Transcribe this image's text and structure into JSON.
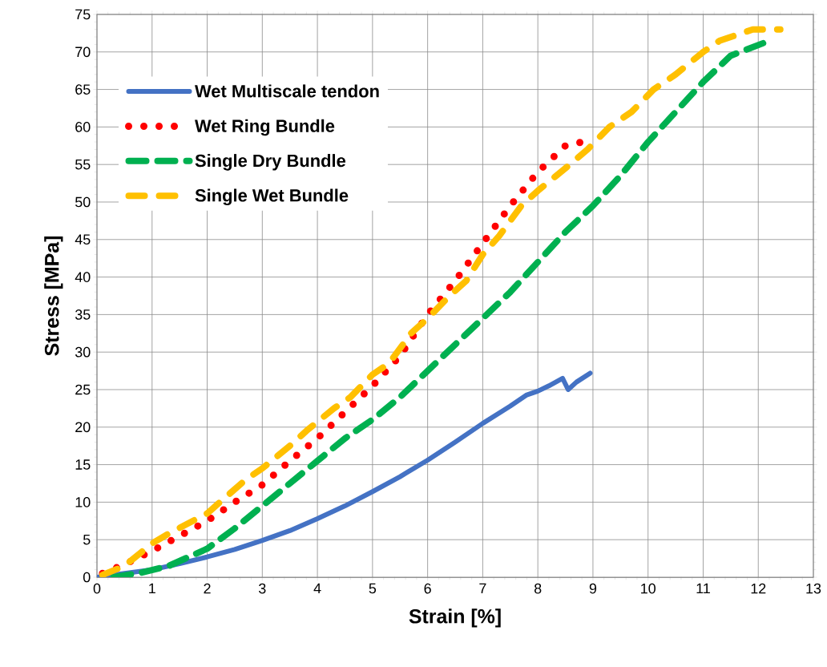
{
  "chart_data": {
    "type": "line",
    "xlabel": "Strain [%]",
    "ylabel": "Stress [MPa]",
    "xlim": [
      0,
      13
    ],
    "ylim": [
      0,
      75
    ],
    "xticks": [
      0,
      1,
      2,
      3,
      4,
      5,
      6,
      7,
      8,
      9,
      10,
      11,
      12,
      13
    ],
    "yticks": [
      0,
      5,
      10,
      15,
      20,
      25,
      30,
      35,
      40,
      45,
      50,
      55,
      60,
      65,
      70,
      75
    ],
    "grid": true,
    "legend": "top left",
    "series": [
      {
        "name": "Wet Multiscale tendon",
        "color": "#4472c4",
        "line_style": "solid",
        "x": [
          0,
          0.5,
          1,
          1.5,
          2,
          2.5,
          3,
          3.5,
          4,
          4.5,
          5,
          5.5,
          6,
          6.5,
          7,
          7.5,
          7.8,
          8,
          8.2,
          8.45,
          8.55,
          8.7,
          8.95
        ],
        "values": [
          0,
          0.5,
          1,
          1.8,
          2.7,
          3.7,
          4.9,
          6.2,
          7.8,
          9.5,
          11.4,
          13.4,
          15.6,
          18,
          20.5,
          22.8,
          24.3,
          24.8,
          25.5,
          26.5,
          25,
          26,
          27.2
        ]
      },
      {
        "name": "Wet Ring Bundle",
        "color": "#ff0000",
        "line_style": "dotted",
        "x": [
          0.1,
          0.5,
          1,
          1.5,
          2,
          2.5,
          3,
          3.5,
          4,
          4.5,
          5,
          5.5,
          6,
          6.5,
          7,
          7.5,
          8,
          8.5,
          8.8
        ],
        "values": [
          0.5,
          1.7,
          3.5,
          5.5,
          7.5,
          10,
          12.3,
          15.5,
          18.5,
          22,
          25.5,
          29.5,
          35,
          39.5,
          44.5,
          49.5,
          54,
          57.5,
          58
        ]
      },
      {
        "name": "Single Dry Bundle",
        "color": "#00b050",
        "line_style": "dashed",
        "x": [
          0.3,
          0.8,
          1.3,
          2,
          2.5,
          3,
          3.5,
          4,
          4.5,
          5,
          5.5,
          6,
          6.5,
          7,
          7.5,
          8,
          8.5,
          9,
          9.5,
          10,
          10.5,
          11,
          11.5,
          12.1
        ],
        "values": [
          0,
          0.6,
          1.5,
          3.8,
          6.5,
          9.5,
          12.5,
          15.5,
          18.5,
          21,
          24,
          27.5,
          31,
          34.5,
          38,
          42,
          46,
          49.5,
          53.5,
          58,
          62,
          66,
          69.5,
          71.2
        ]
      },
      {
        "name": "Single Wet Bundle",
        "color": "#ffc000",
        "line_style": "dashed",
        "x": [
          0.1,
          0.5,
          1,
          1.3,
          2,
          2.2,
          2.7,
          3,
          3.5,
          3.8,
          4.3,
          4.6,
          5,
          5.3,
          5.7,
          6,
          6.4,
          6.7,
          7,
          7.3,
          7.7,
          8,
          8.5,
          8.9,
          9.3,
          9.7,
          10.1,
          10.5,
          11,
          11.3,
          11.9,
          12.4
        ],
        "values": [
          0.3,
          1.5,
          4.5,
          5.8,
          8.5,
          9.8,
          13,
          14.5,
          17.5,
          19.5,
          22.5,
          24,
          27,
          28.5,
          32.5,
          34.5,
          37.5,
          39.5,
          43,
          45.5,
          49.5,
          51.5,
          54.5,
          57,
          60,
          62,
          65,
          67,
          70,
          71.5,
          73,
          73
        ]
      }
    ]
  }
}
